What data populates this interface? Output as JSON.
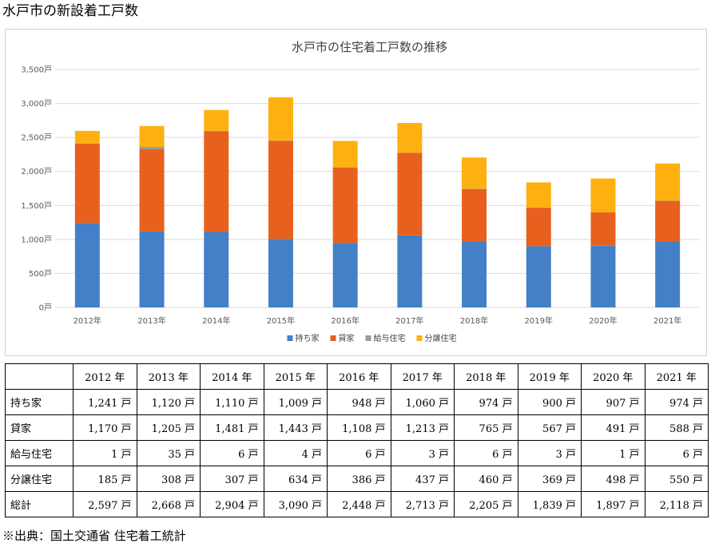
{
  "heading": "水戸市の新設着工戸数",
  "source_note": "※出典：国土交通省 住宅着工統計",
  "chart_data": {
    "type": "bar",
    "stacked": true,
    "title": "水戸市の住宅着工戸数の推移",
    "categories": [
      "2012年",
      "2013年",
      "2014年",
      "2015年",
      "2016年",
      "2017年",
      "2018年",
      "2019年",
      "2020年",
      "2021年"
    ],
    "series": [
      {
        "name": "持ち家",
        "color": "#4480c8",
        "values": [
          1241,
          1120,
          1110,
          1009,
          948,
          1060,
          974,
          900,
          907,
          974
        ]
      },
      {
        "name": "貸家",
        "color": "#e8601d",
        "values": [
          1170,
          1205,
          1481,
          1443,
          1108,
          1213,
          765,
          567,
          491,
          588
        ]
      },
      {
        "name": "給与住宅",
        "color": "#999999",
        "values": [
          1,
          35,
          6,
          4,
          6,
          3,
          6,
          3,
          1,
          6
        ]
      },
      {
        "name": "分譲住宅",
        "color": "#fdb00f",
        "values": [
          185,
          308,
          307,
          634,
          386,
          437,
          460,
          369,
          498,
          550
        ]
      }
    ],
    "ylim": [
      0,
      3500
    ],
    "yticks": [
      0,
      500,
      1000,
      1500,
      2000,
      2500,
      3000,
      3500
    ],
    "ytick_labels": [
      "0戸",
      "500戸",
      "1,000戸",
      "1,500戸",
      "2,000戸",
      "2,500戸",
      "3,000戸",
      "3,500戸"
    ],
    "grid": true,
    "legend": "bottom"
  },
  "table": {
    "headers": [
      "2012 年",
      "2013 年",
      "2014 年",
      "2015 年",
      "2016 年",
      "2017 年",
      "2018 年",
      "2019 年",
      "2020 年",
      "2021 年"
    ],
    "rows": [
      {
        "label": "持ち家",
        "cells": [
          "1,241 戸",
          "1,120 戸",
          "1,110 戸",
          "1,009 戸",
          "948 戸",
          "1,060 戸",
          "974 戸",
          "900 戸",
          "907 戸",
          "974 戸"
        ]
      },
      {
        "label": "貸家",
        "cells": [
          "1,170 戸",
          "1,205 戸",
          "1,481 戸",
          "1,443 戸",
          "1,108 戸",
          "1,213 戸",
          "765 戸",
          "567 戸",
          "491 戸",
          "588 戸"
        ]
      },
      {
        "label": "給与住宅",
        "cells": [
          "1 戸",
          "35 戸",
          "6 戸",
          "4 戸",
          "6 戸",
          "3 戸",
          "6 戸",
          "3 戸",
          "1 戸",
          "6 戸"
        ]
      },
      {
        "label": "分譲住宅",
        "cells": [
          "185 戸",
          "308 戸",
          "307 戸",
          "634 戸",
          "386 戸",
          "437 戸",
          "460 戸",
          "369 戸",
          "498 戸",
          "550 戸"
        ]
      },
      {
        "label": "総計",
        "cells": [
          "2,597 戸",
          "2,668 戸",
          "2,904 戸",
          "3,090 戸",
          "2,448 戸",
          "2,713 戸",
          "2,205 戸",
          "1,839 戸",
          "1,897 戸",
          "2,118 戸"
        ]
      }
    ]
  }
}
